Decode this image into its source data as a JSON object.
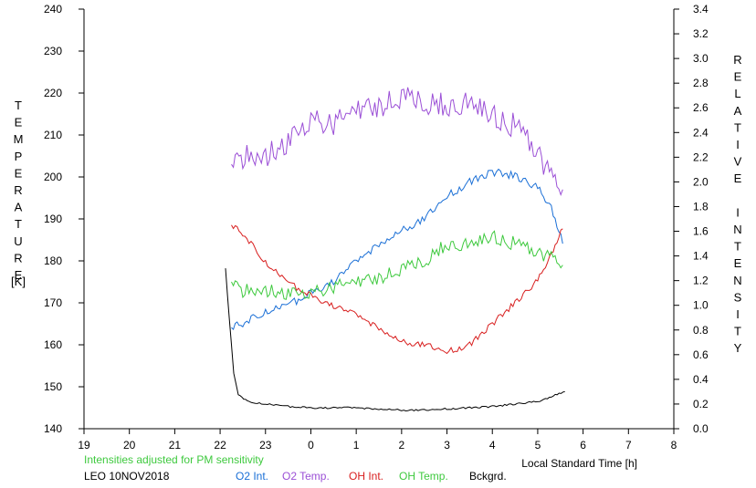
{
  "chart_data": {
    "type": "line",
    "xlabel": "Local Standard Time [h]",
    "ylabel_left": "TEMPERATURE",
    "ylabel_left_unit": "[K]",
    "ylabel_right": "RELATIVE INTENSITY",
    "x_range": [
      19,
      32
    ],
    "x_tick_labels": [
      "19",
      "20",
      "21",
      "22",
      "23",
      "0",
      "1",
      "2",
      "3",
      "4",
      "5",
      "6",
      "7",
      "8"
    ],
    "y_left_range": [
      140,
      240
    ],
    "y_left_ticks": [
      140,
      150,
      160,
      170,
      180,
      190,
      200,
      210,
      220,
      230,
      240
    ],
    "y_right_range": [
      0.0,
      3.4
    ],
    "y_right_ticks": [
      "0.0",
      "0.2",
      "0.4",
      "0.6",
      "0.8",
      "1.0",
      "1.2",
      "1.4",
      "1.6",
      "1.8",
      "2.0",
      "2.2",
      "2.4",
      "2.6",
      "2.8",
      "3.0",
      "3.2",
      "3.4"
    ],
    "grid": false,
    "note": "Intensities adjusted for PM sensitivity",
    "station": "LEO 10NOV2018",
    "series": [
      {
        "name": "O2 Int.",
        "axis": "right",
        "color": "#1a6fd6",
        "points": [
          [
            22.25,
            0.82
          ],
          [
            22.5,
            0.85
          ],
          [
            23.0,
            0.95
          ],
          [
            23.5,
            1.0
          ],
          [
            24.0,
            1.1
          ],
          [
            24.5,
            1.2
          ],
          [
            25.0,
            1.35
          ],
          [
            25.5,
            1.5
          ],
          [
            26.0,
            1.6
          ],
          [
            26.5,
            1.7
          ],
          [
            27.0,
            1.88
          ],
          [
            27.5,
            2.0
          ],
          [
            28.0,
            2.08
          ],
          [
            28.5,
            2.05
          ],
          [
            29.0,
            1.95
          ],
          [
            29.3,
            1.8
          ],
          [
            29.55,
            1.5
          ]
        ]
      },
      {
        "name": "O2 Temp.",
        "axis": "left",
        "color": "#9b4fd6",
        "points": [
          [
            22.25,
            203
          ],
          [
            22.5,
            205
          ],
          [
            23.0,
            205
          ],
          [
            23.5,
            208
          ],
          [
            24.0,
            213
          ],
          [
            24.5,
            213
          ],
          [
            25.0,
            216
          ],
          [
            25.5,
            217
          ],
          [
            26.0,
            219
          ],
          [
            26.5,
            218
          ],
          [
            27.0,
            217
          ],
          [
            27.5,
            218
          ],
          [
            28.0,
            215
          ],
          [
            28.5,
            212
          ],
          [
            29.0,
            206
          ],
          [
            29.3,
            200
          ],
          [
            29.55,
            197
          ]
        ]
      },
      {
        "name": "OH Int.",
        "axis": "right",
        "color": "#d81e1e",
        "points": [
          [
            22.25,
            1.65
          ],
          [
            22.5,
            1.58
          ],
          [
            23.0,
            1.35
          ],
          [
            23.5,
            1.18
          ],
          [
            24.0,
            1.08
          ],
          [
            24.5,
            1.0
          ],
          [
            25.0,
            0.92
          ],
          [
            25.5,
            0.82
          ],
          [
            26.0,
            0.7
          ],
          [
            26.5,
            0.68
          ],
          [
            27.0,
            0.62
          ],
          [
            27.5,
            0.68
          ],
          [
            28.0,
            0.85
          ],
          [
            28.5,
            1.02
          ],
          [
            29.0,
            1.2
          ],
          [
            29.3,
            1.42
          ],
          [
            29.55,
            1.62
          ]
        ]
      },
      {
        "name": "OH Temp.",
        "axis": "left",
        "color": "#3ec93e",
        "points": [
          [
            22.25,
            175
          ],
          [
            22.5,
            173
          ],
          [
            23.0,
            173
          ],
          [
            23.5,
            172
          ],
          [
            24.0,
            172
          ],
          [
            24.5,
            174
          ],
          [
            25.0,
            175
          ],
          [
            25.5,
            176
          ],
          [
            26.0,
            178
          ],
          [
            26.5,
            180
          ],
          [
            27.0,
            184
          ],
          [
            27.5,
            184
          ],
          [
            28.0,
            186
          ],
          [
            28.5,
            184
          ],
          [
            29.0,
            182
          ],
          [
            29.3,
            181
          ],
          [
            29.55,
            179
          ]
        ]
      },
      {
        "name": "Bckgrd.",
        "axis": "right",
        "color": "#000000",
        "points": [
          [
            22.12,
            1.3
          ],
          [
            22.2,
            0.9
          ],
          [
            22.3,
            0.45
          ],
          [
            22.4,
            0.28
          ],
          [
            22.6,
            0.22
          ],
          [
            23.0,
            0.2
          ],
          [
            23.5,
            0.18
          ],
          [
            24.0,
            0.17
          ],
          [
            24.5,
            0.17
          ],
          [
            25.0,
            0.17
          ],
          [
            25.5,
            0.16
          ],
          [
            26.0,
            0.15
          ],
          [
            26.5,
            0.15
          ],
          [
            27.0,
            0.16
          ],
          [
            27.5,
            0.17
          ],
          [
            28.0,
            0.18
          ],
          [
            28.5,
            0.2
          ],
          [
            29.0,
            0.22
          ],
          [
            29.3,
            0.26
          ],
          [
            29.6,
            0.3
          ]
        ]
      }
    ]
  }
}
